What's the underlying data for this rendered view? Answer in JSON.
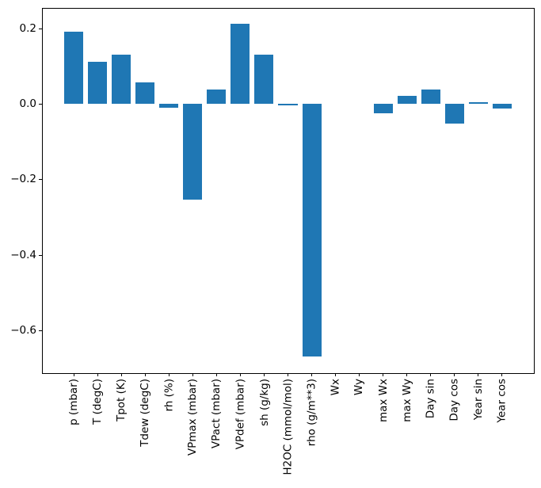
{
  "chart_data": {
    "type": "bar",
    "title": "",
    "xlabel": "",
    "ylabel": "",
    "categories": [
      "p (mbar)",
      "T (degC)",
      "Tpot (K)",
      "Tdew (degC)",
      "rh (%)",
      "VPmax (mbar)",
      "VPact (mbar)",
      "VPdef (mbar)",
      "sh (g/kg)",
      "H2OC (mmol/mol)",
      "rho (g/m**3)",
      "Wx",
      "Wy",
      "max Wx",
      "max Wy",
      "Day sin",
      "Day cos",
      "Year sin",
      "Year cos"
    ],
    "values": [
      0.191,
      0.111,
      0.13,
      0.056,
      -0.011,
      -0.254,
      0.037,
      0.211,
      0.131,
      -0.005,
      -0.668,
      0.0,
      0.0,
      -0.025,
      0.021,
      0.037,
      -0.053,
      0.004,
      -0.012
    ],
    "bar_color": "#1f77b4",
    "axis_color": "#000000",
    "background_color": "#ffffff",
    "ylim": [
      -0.712,
      0.255
    ],
    "yticks": [
      0.2,
      0.0,
      -0.2,
      -0.4,
      -0.6
    ],
    "ytick_labels": [
      "0.2",
      "0.0",
      "−0.2",
      "−0.4",
      "−0.6"
    ],
    "xtick_rotation_deg": 90,
    "bar_relative_width": 0.8,
    "grid": false,
    "legend": false
  }
}
